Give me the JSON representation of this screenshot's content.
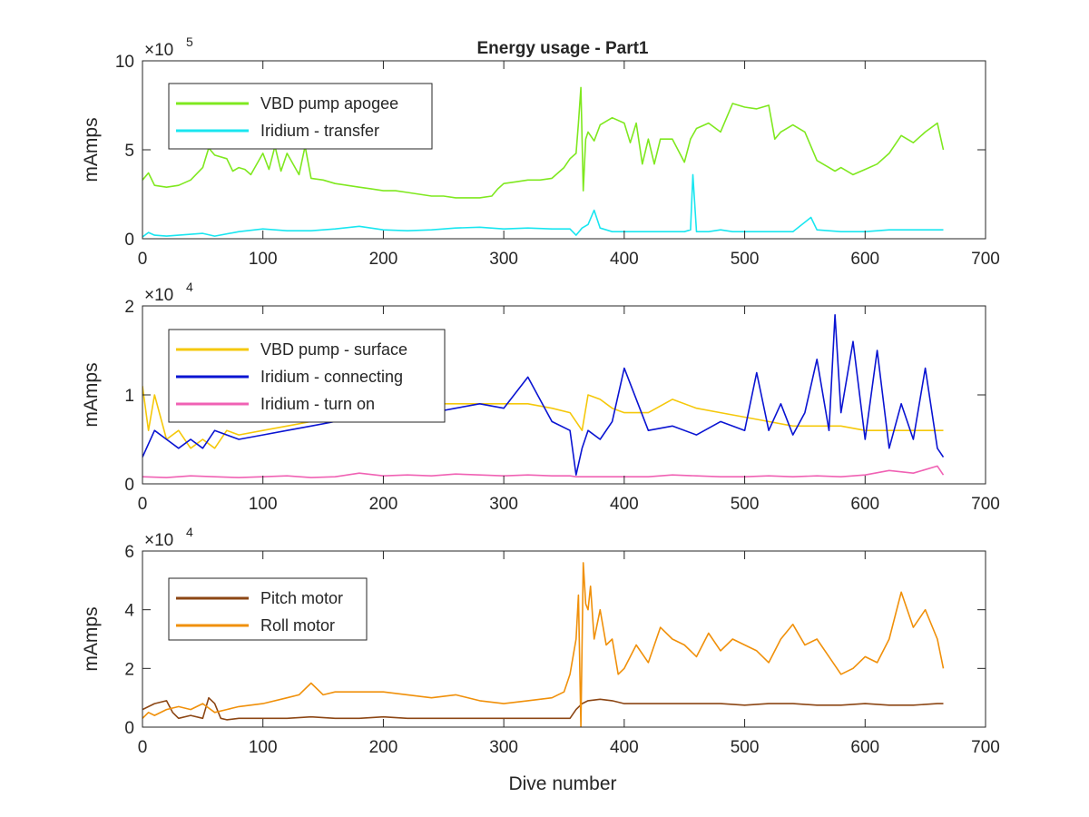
{
  "figure": {
    "title": "Energy usage - Part1",
    "xlabel": "Dive number"
  },
  "chart_data": [
    {
      "type": "line",
      "title": "Energy usage - Part1",
      "xlabel": "",
      "ylabel": "mAmps",
      "xlim": [
        0,
        700
      ],
      "ylim": [
        0,
        1000000
      ],
      "xticks": [
        0,
        100,
        200,
        300,
        400,
        500,
        600,
        700
      ],
      "yticks": [
        0,
        500000,
        1000000
      ],
      "ytick_labels": [
        "0",
        "5",
        "10"
      ],
      "exponent_label": "×10",
      "exponent_power": "5",
      "legend_position": "top-left",
      "series": [
        {
          "name": "VBD pump apogee",
          "color": "#7fe81f",
          "x": [
            0,
            5,
            10,
            20,
            30,
            40,
            50,
            55,
            60,
            70,
            75,
            80,
            85,
            90,
            100,
            105,
            110,
            115,
            120,
            130,
            135,
            140,
            150,
            160,
            170,
            180,
            190,
            200,
            210,
            220,
            230,
            240,
            250,
            260,
            270,
            280,
            290,
            295,
            300,
            310,
            320,
            330,
            340,
            350,
            355,
            360,
            362,
            364,
            366,
            368,
            370,
            375,
            380,
            390,
            400,
            405,
            410,
            415,
            420,
            425,
            430,
            440,
            450,
            455,
            460,
            470,
            480,
            490,
            500,
            510,
            520,
            525,
            530,
            540,
            550,
            560,
            570,
            575,
            580,
            590,
            600,
            610,
            620,
            630,
            640,
            650,
            660,
            665
          ],
          "values": [
            330000,
            370000,
            300000,
            290000,
            300000,
            330000,
            400000,
            510000,
            470000,
            450000,
            380000,
            400000,
            390000,
            360000,
            480000,
            390000,
            520000,
            380000,
            480000,
            360000,
            520000,
            340000,
            330000,
            310000,
            300000,
            290000,
            280000,
            270000,
            270000,
            260000,
            250000,
            240000,
            240000,
            230000,
            230000,
            230000,
            240000,
            280000,
            310000,
            320000,
            330000,
            330000,
            340000,
            400000,
            450000,
            480000,
            650000,
            850000,
            270000,
            560000,
            600000,
            550000,
            640000,
            680000,
            650000,
            540000,
            650000,
            420000,
            560000,
            420000,
            560000,
            560000,
            430000,
            560000,
            620000,
            650000,
            600000,
            760000,
            740000,
            730000,
            750000,
            560000,
            600000,
            640000,
            600000,
            440000,
            400000,
            380000,
            400000,
            360000,
            390000,
            420000,
            480000,
            580000,
            540000,
            600000,
            650000,
            500000
          ]
        },
        {
          "name": "Iridium - transfer",
          "color": "#19e6f0",
          "x": [
            0,
            5,
            10,
            20,
            30,
            40,
            50,
            60,
            80,
            100,
            120,
            140,
            160,
            180,
            200,
            220,
            240,
            260,
            280,
            300,
            320,
            340,
            355,
            360,
            365,
            370,
            375,
            380,
            390,
            400,
            420,
            440,
            450,
            455,
            457,
            460,
            470,
            480,
            490,
            500,
            520,
            540,
            555,
            560,
            580,
            600,
            620,
            640,
            665
          ],
          "values": [
            10000,
            35000,
            20000,
            15000,
            20000,
            25000,
            30000,
            15000,
            40000,
            55000,
            45000,
            45000,
            55000,
            70000,
            50000,
            45000,
            50000,
            60000,
            65000,
            55000,
            60000,
            55000,
            55000,
            20000,
            60000,
            80000,
            160000,
            60000,
            40000,
            40000,
            40000,
            40000,
            40000,
            50000,
            360000,
            40000,
            40000,
            50000,
            40000,
            40000,
            40000,
            40000,
            120000,
            50000,
            40000,
            40000,
            50000,
            50000,
            50000
          ]
        }
      ]
    },
    {
      "type": "line",
      "title": "",
      "xlabel": "",
      "ylabel": "mAmps",
      "xlim": [
        0,
        700
      ],
      "ylim": [
        0,
        20000
      ],
      "xticks": [
        0,
        100,
        200,
        300,
        400,
        500,
        600,
        700
      ],
      "yticks": [
        0,
        10000,
        20000
      ],
      "ytick_labels": [
        "0",
        "1",
        "2"
      ],
      "exponent_label": "×10",
      "exponent_power": "4",
      "legend_position": "top-left",
      "series": [
        {
          "name": "VBD pump - surface",
          "color": "#f5c80a",
          "x": [
            0,
            5,
            10,
            20,
            30,
            40,
            50,
            60,
            70,
            80,
            100,
            120,
            140,
            160,
            180,
            200,
            220,
            240,
            260,
            280,
            300,
            320,
            340,
            355,
            360,
            365,
            370,
            380,
            390,
            400,
            420,
            440,
            460,
            480,
            500,
            520,
            540,
            560,
            580,
            600,
            620,
            640,
            665
          ],
          "values": [
            11000,
            6000,
            10000,
            5000,
            6000,
            4000,
            5000,
            4000,
            6000,
            5500,
            6000,
            6500,
            7000,
            7500,
            8000,
            8000,
            8500,
            9000,
            9000,
            9000,
            9000,
            9000,
            8500,
            8000,
            7000,
            6000,
            10000,
            9500,
            8500,
            8000,
            8000,
            9500,
            8500,
            8000,
            7500,
            7000,
            6500,
            6500,
            6500,
            6000,
            6000,
            6000,
            6000
          ]
        },
        {
          "name": "Iridium - connecting",
          "color": "#0a14d2",
          "x": [
            0,
            10,
            20,
            30,
            40,
            50,
            60,
            80,
            100,
            120,
            140,
            160,
            180,
            200,
            220,
            240,
            260,
            280,
            300,
            320,
            340,
            355,
            360,
            365,
            370,
            380,
            390,
            400,
            420,
            440,
            460,
            480,
            500,
            510,
            520,
            530,
            540,
            550,
            560,
            570,
            575,
            580,
            590,
            600,
            610,
            620,
            630,
            640,
            650,
            660,
            665
          ],
          "values": [
            3000,
            6000,
            5000,
            4000,
            5000,
            4000,
            6000,
            5000,
            5500,
            6000,
            6500,
            7000,
            8000,
            7000,
            7500,
            8000,
            8500,
            9000,
            8500,
            12000,
            7000,
            6000,
            1000,
            4000,
            6000,
            5000,
            7000,
            13000,
            6000,
            6500,
            5500,
            7000,
            6000,
            12500,
            6000,
            9000,
            5500,
            8000,
            14000,
            6000,
            19000,
            8000,
            16000,
            5000,
            15000,
            4000,
            9000,
            5000,
            13000,
            4000,
            3000
          ]
        },
        {
          "name": "Iridium - turn on",
          "color": "#f062b4",
          "x": [
            0,
            20,
            40,
            60,
            80,
            100,
            120,
            140,
            160,
            180,
            200,
            220,
            240,
            260,
            280,
            300,
            320,
            340,
            355,
            360,
            380,
            400,
            420,
            440,
            460,
            480,
            500,
            520,
            540,
            560,
            580,
            600,
            620,
            640,
            660,
            665
          ],
          "values": [
            800,
            700,
            900,
            800,
            700,
            800,
            900,
            700,
            800,
            1200,
            900,
            1000,
            900,
            1100,
            1000,
            900,
            1000,
            900,
            900,
            800,
            800,
            800,
            800,
            1000,
            900,
            800,
            800,
            900,
            800,
            900,
            800,
            1000,
            1500,
            1200,
            2000,
            1000
          ]
        }
      ]
    },
    {
      "type": "line",
      "title": "",
      "xlabel": "Dive number",
      "ylabel": "mAmps",
      "xlim": [
        0,
        700
      ],
      "ylim": [
        0,
        60000
      ],
      "xticks": [
        0,
        100,
        200,
        300,
        400,
        500,
        600,
        700
      ],
      "yticks": [
        0,
        20000,
        40000,
        60000
      ],
      "ytick_labels": [
        "0",
        "2",
        "4",
        "6"
      ],
      "exponent_label": "×10",
      "exponent_power": "4",
      "legend_position": "top-left",
      "series": [
        {
          "name": "Pitch motor",
          "color": "#8c4614",
          "x": [
            0,
            5,
            10,
            20,
            25,
            30,
            40,
            50,
            55,
            60,
            65,
            70,
            80,
            100,
            120,
            140,
            160,
            180,
            200,
            220,
            240,
            260,
            280,
            300,
            320,
            340,
            350,
            355,
            360,
            365,
            370,
            380,
            390,
            400,
            420,
            440,
            460,
            480,
            500,
            520,
            540,
            560,
            580,
            600,
            620,
            640,
            660,
            665
          ],
          "values": [
            6000,
            7000,
            8000,
            9000,
            5000,
            3000,
            4000,
            3000,
            10000,
            8000,
            3000,
            2500,
            3000,
            3000,
            3000,
            3500,
            3000,
            3000,
            3500,
            3000,
            3000,
            3000,
            3000,
            3000,
            3000,
            3000,
            3000,
            3000,
            6000,
            8000,
            9000,
            9500,
            9000,
            8000,
            8000,
            8000,
            8000,
            8000,
            7500,
            8000,
            8000,
            7500,
            7500,
            8000,
            7500,
            7500,
            8000,
            8000
          ]
        },
        {
          "name": "Roll motor",
          "color": "#f0900a",
          "x": [
            0,
            5,
            10,
            20,
            30,
            40,
            50,
            60,
            70,
            80,
            100,
            120,
            130,
            140,
            150,
            160,
            180,
            200,
            220,
            240,
            260,
            280,
            300,
            320,
            340,
            350,
            355,
            360,
            362,
            364,
            366,
            368,
            370,
            372,
            375,
            380,
            385,
            390,
            395,
            400,
            410,
            420,
            430,
            440,
            450,
            460,
            470,
            480,
            490,
            500,
            510,
            520,
            530,
            540,
            550,
            560,
            570,
            580,
            590,
            600,
            610,
            620,
            630,
            640,
            650,
            660,
            665
          ],
          "values": [
            3000,
            5000,
            4000,
            6000,
            7000,
            6000,
            8000,
            5000,
            6000,
            7000,
            8000,
            10000,
            11000,
            15000,
            11000,
            12000,
            12000,
            12000,
            11000,
            10000,
            11000,
            9000,
            8000,
            9000,
            10000,
            12000,
            18000,
            30000,
            45000,
            0,
            56000,
            42000,
            40000,
            48000,
            30000,
            40000,
            28000,
            30000,
            18000,
            20000,
            28000,
            22000,
            34000,
            30000,
            28000,
            24000,
            32000,
            26000,
            30000,
            28000,
            26000,
            22000,
            30000,
            35000,
            28000,
            30000,
            24000,
            18000,
            20000,
            24000,
            22000,
            30000,
            46000,
            34000,
            40000,
            30000,
            20000
          ]
        }
      ]
    }
  ]
}
